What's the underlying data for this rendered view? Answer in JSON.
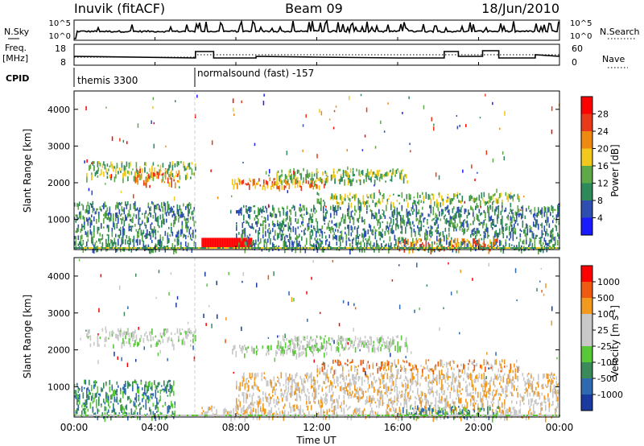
{
  "header": {
    "radar": "Inuvik (fitACF)",
    "beam": "Beam 09",
    "date": "18/Jun/2010"
  },
  "strip1": {
    "left_label": "N.Sky",
    "left_ticks": [
      "10^5",
      "10^0"
    ],
    "right_ticks": [
      "10^5",
      "10^0"
    ],
    "right_label": "N.Search"
  },
  "strip2": {
    "left_label_top": "Freq.",
    "left_label_bottom": "[MHz]",
    "left_ticks": [
      "18",
      "8"
    ],
    "right_ticks": [
      "60",
      "0"
    ],
    "right_label": "Nave"
  },
  "cpid": {
    "label": "CPID",
    "segments": [
      {
        "start": "00:00",
        "text": "themis 3300"
      },
      {
        "start": "06:00",
        "text": "normalsound (fast) -157"
      }
    ]
  },
  "xaxis": {
    "ticks": [
      "00:00",
      "04:00",
      "08:00",
      "12:00",
      "16:00",
      "20:00",
      "00:00"
    ],
    "label": "Time UT"
  },
  "colors": {
    "power": [
      "#1a1aff",
      "#2f4fb0",
      "#2e8a5a",
      "#5fa848",
      "#f2c81c",
      "#ee8a10",
      "#e83a1a",
      "#ff0000"
    ],
    "velocity": [
      "#ff0000",
      "#ee5a10",
      "#f29a20",
      "#c8c8c8",
      "#c8c8c8",
      "#58c838",
      "#3a8a5a",
      "#2f6ab0",
      "#1a3aa0"
    ]
  },
  "chart_data": [
    {
      "type": "heatmap",
      "title": "",
      "xlabel": "",
      "ylabel": "Slant Range [km]",
      "y_ticks": [
        "1000",
        "2000",
        "3000",
        "4000"
      ],
      "ylim": [
        180,
        4500
      ],
      "x_range": [
        "00:00",
        "24:00"
      ],
      "colorbar": {
        "label": "Power [dB]",
        "ticks": [
          "4",
          "8",
          "12",
          "16",
          "20",
          "24",
          "28"
        ],
        "range": [
          0,
          30
        ]
      },
      "echo_regions": [
        {
          "t": [
            0.6,
            6.0
          ],
          "range": [
            2150,
            2600
          ],
          "value_db": 14,
          "description": "F-region echoes, stronger near 04:00"
        },
        {
          "t": [
            3.0,
            5.2
          ],
          "range": [
            2000,
            2400
          ],
          "value_db": 22
        },
        {
          "t": [
            0.0,
            6.0
          ],
          "range": [
            200,
            1500
          ],
          "value_db": 10
        },
        {
          "t": [
            6.3,
            8.8
          ],
          "range": [
            200,
            500
          ],
          "value_db": 30
        },
        {
          "t": [
            7.8,
            12.5
          ],
          "range": [
            1900,
            2150
          ],
          "value_db": 20
        },
        {
          "t": [
            10.0,
            16.5
          ],
          "range": [
            2050,
            2400
          ],
          "value_db": 14
        },
        {
          "t": [
            12.0,
            22.0
          ],
          "range": [
            1450,
            1750
          ],
          "value_db": 12
        },
        {
          "t": [
            8.0,
            24.0
          ],
          "range": [
            200,
            1400
          ],
          "value_db": 10
        },
        {
          "t": [
            16.0,
            21.0
          ],
          "range": [
            200,
            500
          ],
          "value_db": 20
        }
      ]
    },
    {
      "type": "heatmap",
      "title": "",
      "xlabel": "Time UT",
      "ylabel": "Slant Range [km]",
      "y_ticks": [
        "1000",
        "2000",
        "3000",
        "4000"
      ],
      "ylim": [
        180,
        4500
      ],
      "x_range": [
        "00:00",
        "24:00"
      ],
      "colorbar": {
        "label": "Velocity [m s^-1]",
        "ticks": [
          "1000",
          "500",
          "100",
          "25",
          "-25",
          "-100",
          "-500",
          "-1000"
        ]
      },
      "echo_regions": [
        {
          "t": [
            0.6,
            6.0
          ],
          "range": [
            2150,
            2600
          ],
          "value_ms": 0,
          "description": "ground scatter (grey)"
        },
        {
          "t": [
            0.0,
            5.0
          ],
          "range": [
            200,
            1200
          ],
          "value_ms": -300
        },
        {
          "t": [
            6.3,
            8.8
          ],
          "range": [
            200,
            500
          ],
          "value_ms": 60
        },
        {
          "t": [
            7.8,
            12.5
          ],
          "range": [
            1900,
            2150
          ],
          "value_ms": 0
        },
        {
          "t": [
            10.0,
            16.5
          ],
          "range": [
            2050,
            2400
          ],
          "value_ms": 0
        },
        {
          "t": [
            12.0,
            22.0
          ],
          "range": [
            1450,
            1750
          ],
          "value_ms": 200
        },
        {
          "t": [
            8.0,
            24.0
          ],
          "range": [
            200,
            1400
          ],
          "value_ms": 80
        },
        {
          "t": [
            16.0,
            21.0
          ],
          "range": [
            200,
            500
          ],
          "value_ms": -300
        }
      ]
    }
  ]
}
